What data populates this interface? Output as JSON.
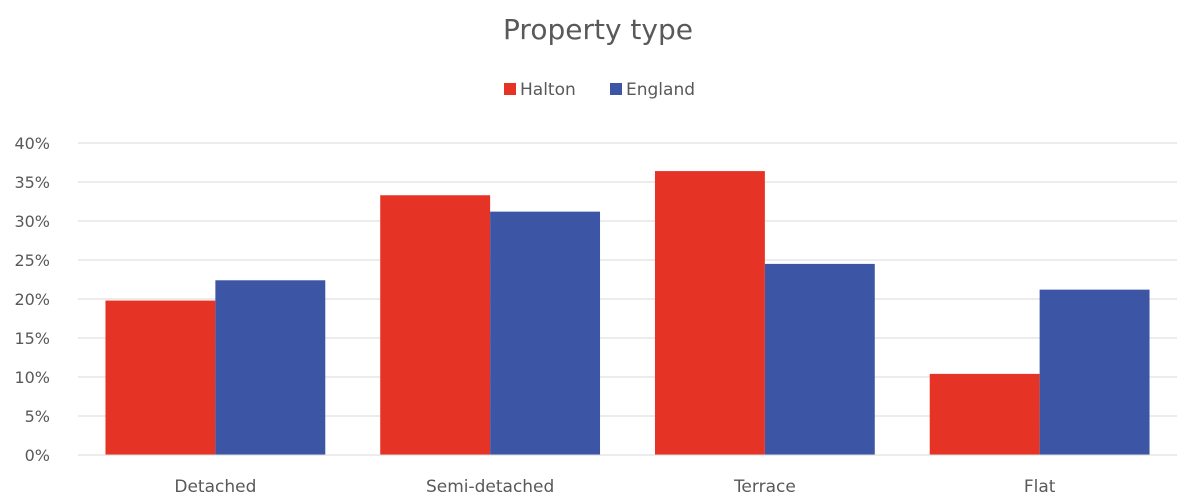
{
  "chart_data": {
    "type": "bar",
    "title": "Property type",
    "categories": [
      "Detached",
      "Semi-detached",
      "Terrace",
      "Flat"
    ],
    "series": [
      {
        "name": "Halton",
        "values": [
          19.8,
          33.3,
          36.4,
          10.4
        ],
        "color": "#E53425"
      },
      {
        "name": "England",
        "values": [
          22.4,
          31.2,
          24.5,
          21.2
        ],
        "color": "#3C55A4"
      }
    ],
    "xlabel": "",
    "ylabel": "",
    "ylim": [
      0,
      40
    ],
    "yticks": [
      "0%",
      "5%",
      "10%",
      "15%",
      "20%",
      "25%",
      "30%",
      "35%",
      "40%"
    ],
    "grid": true,
    "legend_position": "top"
  }
}
